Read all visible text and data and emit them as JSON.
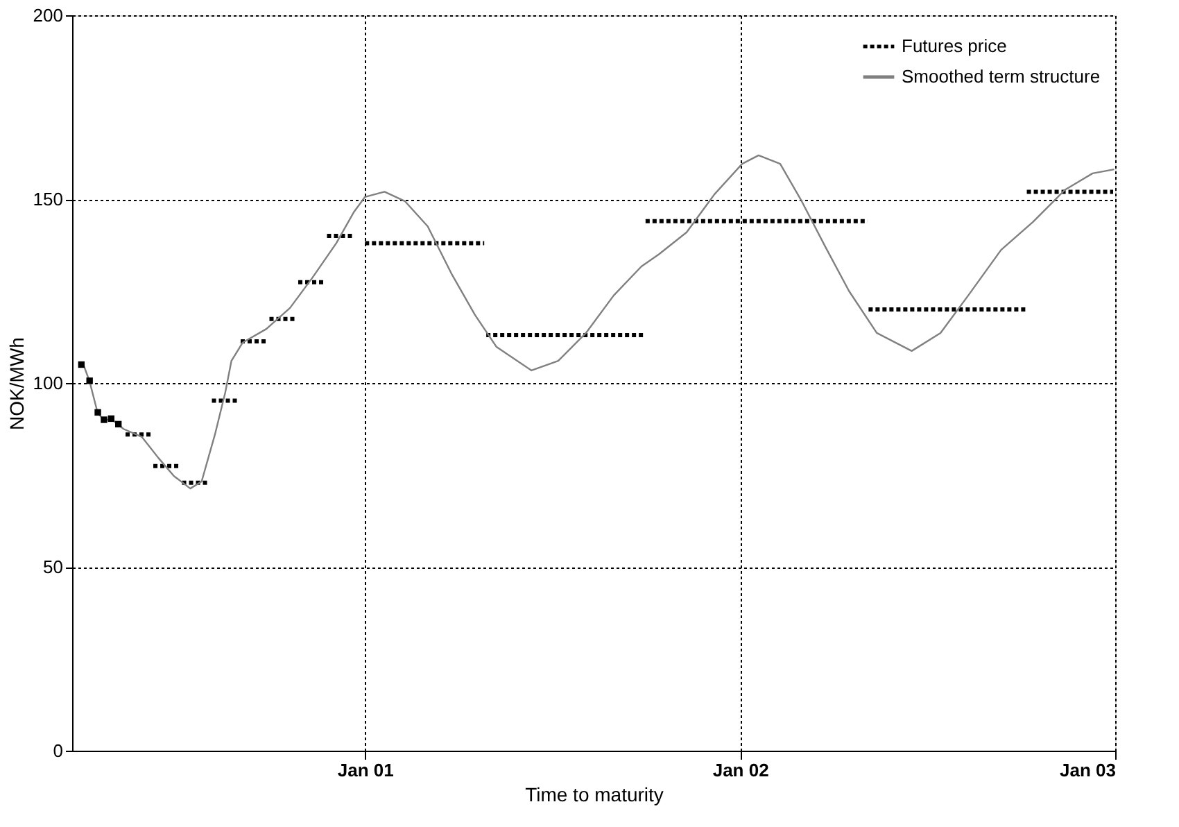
{
  "chart_data": {
    "type": "line",
    "xlabel": "Time to maturity",
    "ylabel": "NOK/MWh",
    "xlim": [
      "2000-03-22",
      "2003-01-01"
    ],
    "xticks": [
      {
        "value": "2001-01-01",
        "label": "Jan 01"
      },
      {
        "value": "2002-01-01",
        "label": "Jan 02"
      },
      {
        "value": "2003-01-01",
        "label": "Jan 03"
      }
    ],
    "ylim": [
      0,
      200
    ],
    "yticks": [
      0,
      50,
      100,
      150,
      200
    ],
    "grid": true,
    "legend": "top right",
    "marker": "none",
    "series": [
      {
        "name": "Futures price",
        "color": "#000000",
        "line_style": "dotted",
        "x": [
          "2000-05-13",
          "2000-06-07"
        ],
        "values": [
          86,
          86
        ]
      },
      {
        "color": "#000000",
        "type": "scatter",
        "marker": "square",
        "x": [
          "2000-03-31",
          "2000-04-08",
          "2000-04-16",
          "2000-04-22",
          "2000-04-29",
          "2000-05-06"
        ],
        "values": [
          105,
          100.6,
          92,
          90,
          90.3,
          88.8
        ]
      },
      {
        "color": "#000000",
        "line_style": "dotted",
        "x": [
          "2000-06-09",
          "2000-07-05"
        ],
        "values": [
          77.4,
          77.4
        ]
      },
      {
        "color": "#000000",
        "line_style": "dotted",
        "x": [
          "2000-07-07",
          "2000-08-03"
        ],
        "values": [
          72.9,
          72.9
        ]
      },
      {
        "color": "#000000",
        "line_style": "dotted",
        "x": [
          "2000-08-05",
          "2000-09-01"
        ],
        "values": [
          95.2,
          95.2
        ]
      },
      {
        "color": "#000000",
        "line_style": "dotted",
        "x": [
          "2000-09-02",
          "2000-09-28"
        ],
        "values": [
          111.3,
          111.3
        ]
      },
      {
        "color": "#000000",
        "line_style": "dotted",
        "x": [
          "2000-09-30",
          "2000-10-26"
        ],
        "values": [
          117.4,
          117.4
        ]
      },
      {
        "color": "#000000",
        "line_style": "dotted",
        "x": [
          "2000-10-28",
          "2000-11-23"
        ],
        "values": [
          127.4,
          127.4
        ]
      },
      {
        "color": "#000000",
        "line_style": "dotted",
        "x": [
          "2000-11-25",
          "2000-12-22"
        ],
        "values": [
          140,
          140
        ]
      },
      {
        "color": "#000000",
        "line_style": "dotted",
        "x": [
          "2001-01-01",
          "2001-04-27"
        ],
        "values": [
          138,
          138
        ]
      },
      {
        "color": "#000000",
        "line_style": "dotted",
        "x": [
          "2001-04-29",
          "2001-10-01"
        ],
        "values": [
          113,
          113
        ]
      },
      {
        "color": "#000000",
        "line_style": "dotted",
        "x": [
          "2001-10-01",
          "2002-05-05"
        ],
        "values": [
          144,
          144
        ]
      },
      {
        "color": "#000000",
        "line_style": "dotted",
        "x": [
          "2002-05-06",
          "2002-10-07"
        ],
        "values": [
          120,
          120
        ]
      },
      {
        "color": "#000000",
        "line_style": "dotted",
        "x": [
          "2002-10-07",
          "2002-12-30"
        ],
        "values": [
          152,
          152
        ]
      },
      {
        "name": "Smoothed term structure",
        "color": "#808080",
        "line_style": "solid",
        "x": [
          "2000-04-02",
          "2000-04-08",
          "2000-04-16",
          "2000-04-22",
          "2000-04-30",
          "2000-05-11",
          "2000-05-29",
          "2000-06-14",
          "2000-06-29",
          "2000-07-15",
          "2000-07-26",
          "2000-08-08",
          "2000-08-18",
          "2000-08-24",
          "2000-09-04",
          "2000-09-27",
          "2000-10-20",
          "2000-11-11",
          "2000-12-04",
          "2000-12-21",
          "2001-01-01",
          "2001-01-20",
          "2001-02-09",
          "2001-03-03",
          "2001-03-26",
          "2001-04-18",
          "2001-05-09",
          "2001-06-12",
          "2001-07-08",
          "2001-08-04",
          "2001-08-31",
          "2001-09-27",
          "2001-10-14",
          "2001-11-10",
          "2001-12-07",
          "2002-01-03",
          "2002-01-19",
          "2002-02-09",
          "2002-03-02",
          "2002-03-25",
          "2002-04-17",
          "2002-05-14",
          "2002-06-17",
          "2002-07-15",
          "2002-08-11",
          "2002-09-12",
          "2002-10-13",
          "2002-11-13",
          "2002-12-10",
          "2002-12-31"
        ],
        "values": [
          105,
          100.4,
          91.7,
          90,
          90,
          87.5,
          85.3,
          79.6,
          74.7,
          71.3,
          73.2,
          86,
          97.4,
          106,
          111,
          114.7,
          120.4,
          128.7,
          138,
          146.4,
          150.6,
          152,
          149.4,
          142.6,
          129.8,
          118.5,
          109.8,
          103.4,
          106,
          113.6,
          123.8,
          131.7,
          135,
          141,
          151.3,
          159.6,
          161.9,
          159.6,
          149.4,
          137,
          125,
          113.6,
          108.7,
          113.6,
          123.8,
          136.2,
          143.8,
          152.5,
          157,
          158.1
        ]
      }
    ]
  }
}
